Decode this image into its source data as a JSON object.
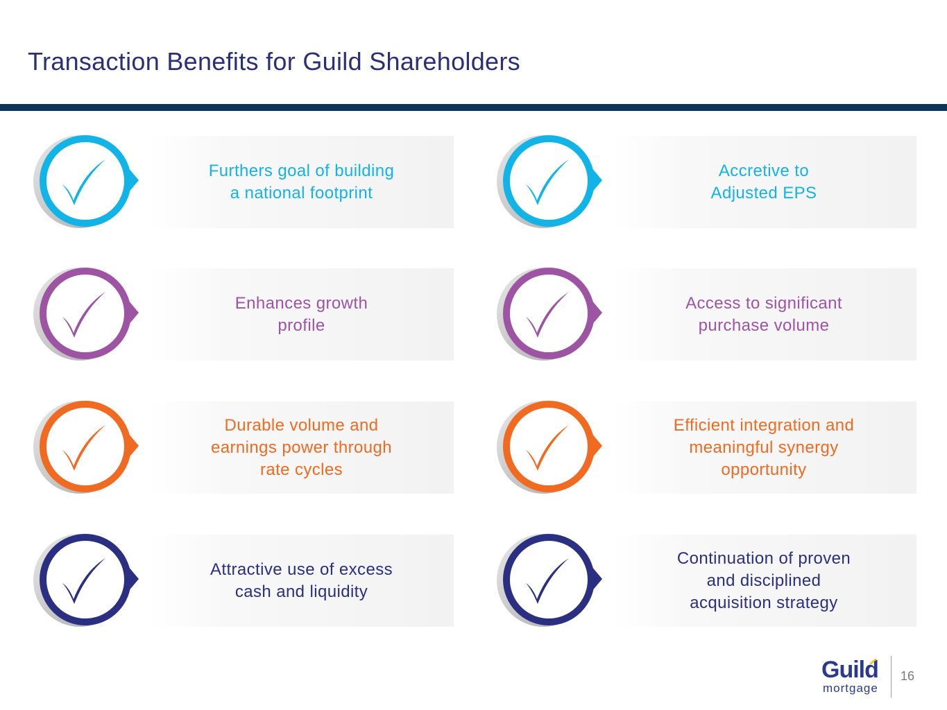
{
  "header": {
    "title": "Transaction Benefits for Guild Shareholders"
  },
  "colors": {
    "cyan": "#12b4e8",
    "purple": "#9d55a3",
    "orange": "#f06a22",
    "navy": "#2a2f82",
    "title": "#2a2f77",
    "rule": "#0c3559"
  },
  "benefits": [
    {
      "text": "Furthers goal of building\na national footprint",
      "color": "#12b4e8",
      "icon": "check-circle-icon"
    },
    {
      "text": "Accretive to\nAdjusted EPS",
      "color": "#12b4e8",
      "icon": "check-circle-icon"
    },
    {
      "text": "Enhances growth\nprofile",
      "color": "#9d55a3",
      "icon": "check-circle-icon"
    },
    {
      "text": "Access to significant\npurchase volume",
      "color": "#9d55a3",
      "icon": "check-circle-icon"
    },
    {
      "text": "Durable volume and\nearnings power through\nrate cycles",
      "color": "#f06a22",
      "icon": "check-circle-icon"
    },
    {
      "text": "Efficient integration and\nmeaningful synergy\nopportunity",
      "color": "#f06a22",
      "icon": "check-circle-icon"
    },
    {
      "text": "Attractive use of excess\ncash and liquidity",
      "color": "#2a2f82",
      "icon": "check-circle-icon"
    },
    {
      "text": "Continuation of proven\nand disciplined\nacquisition strategy",
      "color": "#2a2f82",
      "icon": "check-circle-icon"
    }
  ],
  "footer": {
    "logo_word": "Guild",
    "logo_sub": "mortgage",
    "page_number": "16"
  }
}
